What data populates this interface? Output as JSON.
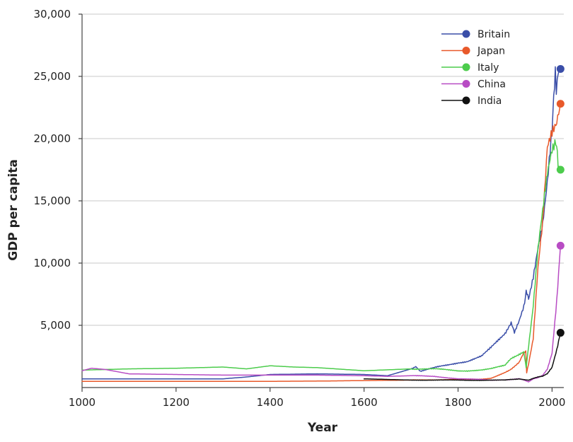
{
  "chart_data": {
    "type": "line",
    "title": "",
    "xlabel": "Year",
    "ylabel": "GDP per capita",
    "xlim": [
      1000,
      2025
    ],
    "ylim": [
      0,
      30000
    ],
    "x_ticks": [
      1000,
      1200,
      1400,
      1600,
      1800,
      2000
    ],
    "x_tick_labels": [
      "1000",
      "1200",
      "1400",
      "1600",
      "1800",
      "2000"
    ],
    "y_ticks": [
      5000,
      10000,
      15000,
      20000,
      25000,
      30000
    ],
    "y_tick_labels": [
      "5,000",
      "10,000",
      "15,000",
      "20,000",
      "25,000",
      "30,000"
    ],
    "grid": "horizontal",
    "legend_position": "top-right",
    "series": [
      {
        "name": "Britain",
        "color": "#3a4ea8",
        "x": [
          1000,
          1100,
          1200,
          1300,
          1350,
          1400,
          1500,
          1600,
          1650,
          1700,
          1710,
          1720,
          1750,
          1800,
          1820,
          1850,
          1870,
          1900,
          1913,
          1920,
          1930,
          1940,
          1945,
          1950,
          1960,
          1970,
          1980,
          1990,
          2000,
          2007,
          2009,
          2015,
          2018
        ],
        "y": [
          700,
          700,
          700,
          700,
          850,
          1050,
          1100,
          1050,
          950,
          1500,
          1700,
          1300,
          1600,
          2000,
          2100,
          2500,
          3200,
          4400,
          5100,
          4500,
          5400,
          6500,
          7800,
          7000,
          8700,
          11000,
          13000,
          16500,
          21000,
          25000,
          23500,
          25500,
          25600
        ]
      },
      {
        "name": "Japan",
        "color": "#e8592a",
        "x": [
          1000,
          1200,
          1400,
          1500,
          1600,
          1700,
          1750,
          1800,
          1850,
          1870,
          1900,
          1913,
          1930,
          1940,
          1944,
          1946,
          1950,
          1960,
          1970,
          1980,
          1990,
          2000,
          2010,
          2018
        ],
        "y": [
          500,
          500,
          500,
          520,
          560,
          600,
          620,
          650,
          680,
          750,
          1200,
          1500,
          2000,
          2800,
          2900,
          1200,
          1900,
          4000,
          9800,
          13500,
          19500,
          20500,
          21000,
          22800
        ]
      },
      {
        "name": "Italy",
        "color": "#4ccc4c",
        "x": [
          1000,
          1050,
          1100,
          1200,
          1300,
          1350,
          1400,
          1450,
          1500,
          1600,
          1700,
          1750,
          1800,
          1820,
          1850,
          1870,
          1900,
          1913,
          1930,
          1940,
          1945,
          1950,
          1960,
          1970,
          1980,
          1990,
          2000,
          2008,
          2013,
          2018
        ],
        "y": [
          1400,
          1450,
          1500,
          1550,
          1650,
          1500,
          1750,
          1650,
          1600,
          1350,
          1500,
          1500,
          1350,
          1350,
          1400,
          1500,
          1800,
          2300,
          2700,
          2900,
          1600,
          3300,
          6500,
          11000,
          14000,
          17000,
          19000,
          19800,
          17800,
          17500
        ]
      },
      {
        "name": "China",
        "color": "#b84cc4",
        "x": [
          1000,
          1020,
          1050,
          1100,
          1200,
          1300,
          1400,
          1500,
          1600,
          1650,
          1700,
          1750,
          1800,
          1850,
          1870,
          1900,
          1913,
          1930,
          1940,
          1950,
          1960,
          1970,
          1980,
          1990,
          2000,
          2010,
          2018
        ],
        "y": [
          1350,
          1550,
          1450,
          1100,
          1050,
          1000,
          1000,
          1000,
          950,
          900,
          950,
          900,
          700,
          650,
          600,
          620,
          650,
          700,
          600,
          450,
          700,
          800,
          1000,
          1500,
          2800,
          7000,
          11400
        ]
      },
      {
        "name": "India",
        "color": "#111111",
        "x": [
          1600,
          1650,
          1700,
          1750,
          1800,
          1850,
          1900,
          1913,
          1930,
          1940,
          1950,
          1960,
          1970,
          1980,
          1990,
          2000,
          2010,
          2018
        ],
        "y": [
          700,
          650,
          600,
          600,
          600,
          580,
          600,
          650,
          700,
          650,
          600,
          750,
          850,
          900,
          1100,
          1600,
          3000,
          4400
        ]
      }
    ]
  }
}
